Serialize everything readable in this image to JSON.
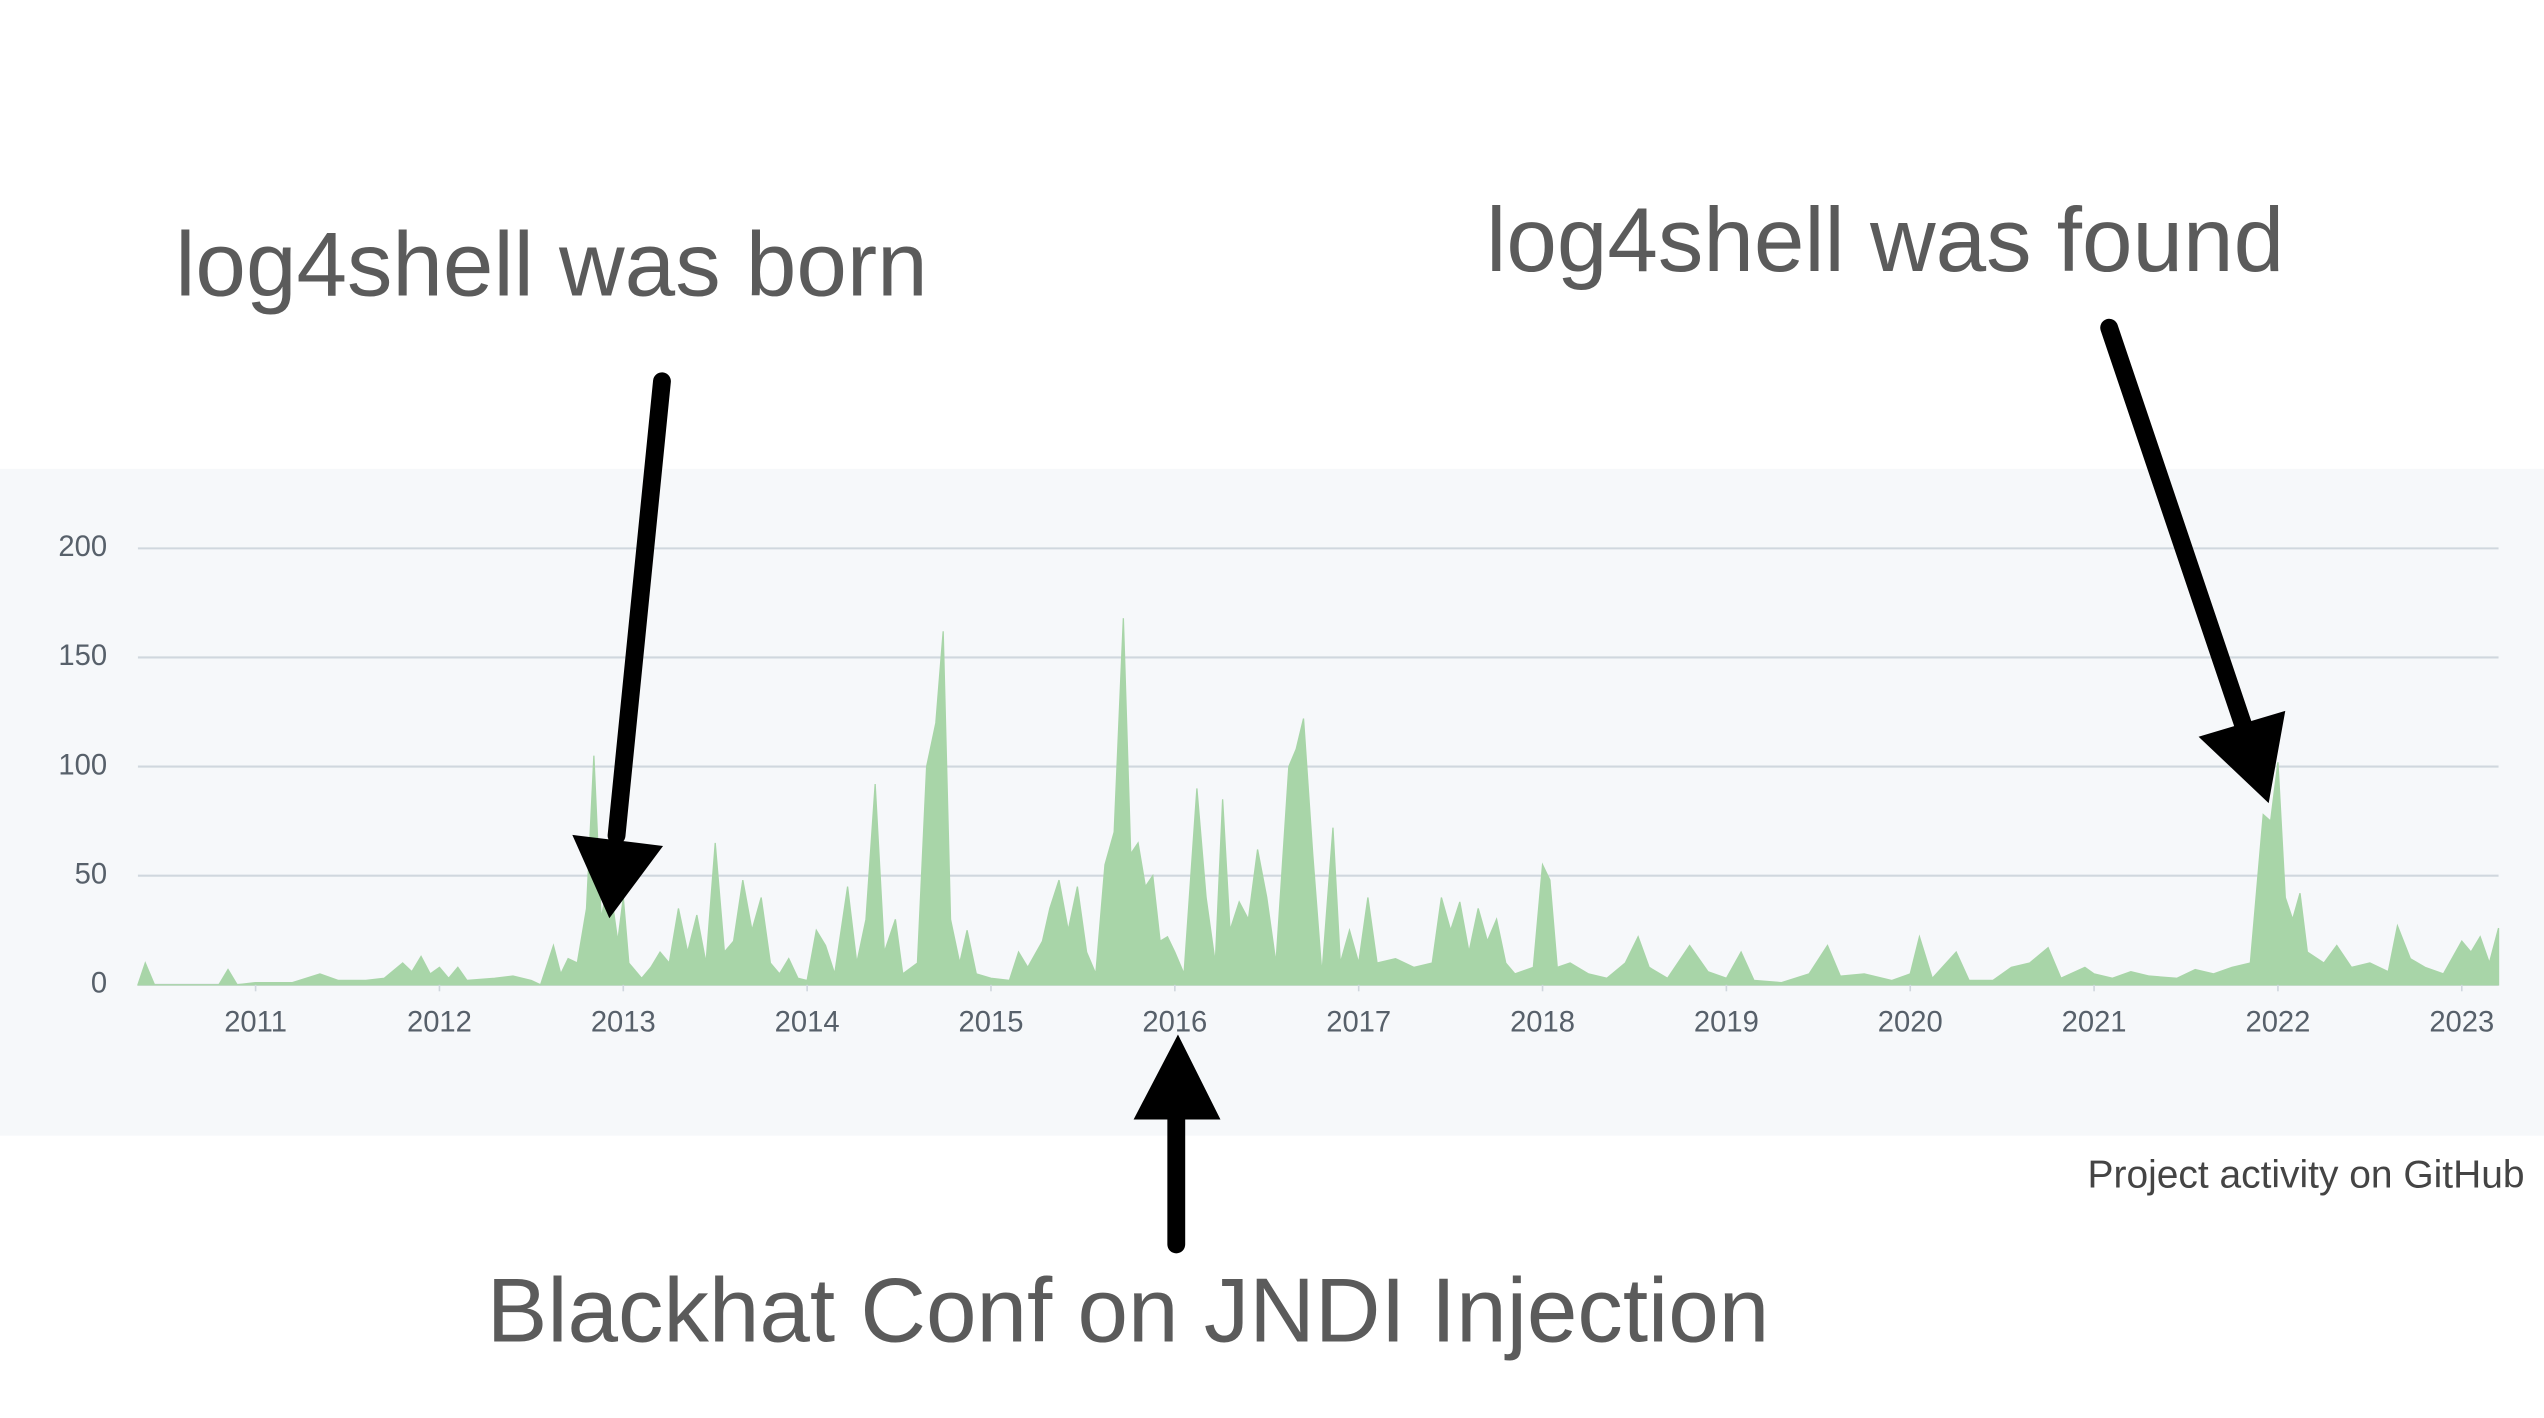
{
  "chart_data": {
    "type": "area",
    "color": "#a8d5a8",
    "grid": true,
    "xlim": [
      2010.36,
      2023.2
    ],
    "ylim": [
      0,
      200
    ],
    "xticks": [
      2011,
      2012,
      2013,
      2014,
      2015,
      2016,
      2017,
      2018,
      2019,
      2020,
      2021,
      2022,
      2023
    ],
    "yticks": [
      0,
      50,
      100,
      150,
      200
    ],
    "annotations": [
      "log4shell was born",
      "log4shell was found",
      "Blackhat Conf on JNDI Injection"
    ],
    "caption": "Project activity on GitHub",
    "x": [
      2010.36,
      2010.4,
      2010.45,
      2010.8,
      2010.85,
      2010.9,
      2011.0,
      2011.2,
      2011.35,
      2011.45,
      2011.6,
      2011.7,
      2011.8,
      2011.85,
      2011.9,
      2011.95,
      2012.0,
      2012.05,
      2012.1,
      2012.15,
      2012.3,
      2012.4,
      2012.5,
      2012.55,
      2012.62,
      2012.66,
      2012.7,
      2012.75,
      2012.8,
      2012.84,
      2012.88,
      2012.92,
      2012.97,
      2013.0,
      2013.03,
      2013.1,
      2013.15,
      2013.2,
      2013.25,
      2013.3,
      2013.35,
      2013.4,
      2013.45,
      2013.5,
      2013.55,
      2013.6,
      2013.65,
      2013.7,
      2013.75,
      2013.8,
      2013.85,
      2013.9,
      2013.95,
      2014.0,
      2014.05,
      2014.1,
      2014.15,
      2014.22,
      2014.27,
      2014.32,
      2014.37,
      2014.42,
      2014.48,
      2014.52,
      2014.6,
      2014.65,
      2014.7,
      2014.74,
      2014.78,
      2014.83,
      2014.87,
      2014.92,
      2015.0,
      2015.1,
      2015.15,
      2015.2,
      2015.28,
      2015.32,
      2015.37,
      2015.42,
      2015.47,
      2015.52,
      2015.57,
      2015.62,
      2015.67,
      2015.72,
      2015.76,
      2015.8,
      2015.84,
      2015.88,
      2015.92,
      2015.96,
      2016.0,
      2016.05,
      2016.12,
      2016.17,
      2016.22,
      2016.26,
      2016.3,
      2016.35,
      2016.4,
      2016.45,
      2016.5,
      2016.55,
      2016.62,
      2016.66,
      2016.7,
      2016.75,
      2016.8,
      2016.86,
      2016.9,
      2016.95,
      2017.0,
      2017.05,
      2017.1,
      2017.2,
      2017.3,
      2017.4,
      2017.45,
      2017.5,
      2017.55,
      2017.6,
      2017.65,
      2017.7,
      2017.75,
      2017.8,
      2017.85,
      2017.95,
      2018.0,
      2018.04,
      2018.08,
      2018.15,
      2018.25,
      2018.35,
      2018.45,
      2018.52,
      2018.58,
      2018.68,
      2018.8,
      2018.9,
      2019.0,
      2019.08,
      2019.15,
      2019.3,
      2019.45,
      2019.55,
      2019.62,
      2019.75,
      2019.9,
      2020.0,
      2020.05,
      2020.12,
      2020.25,
      2020.32,
      2020.45,
      2020.55,
      2020.65,
      2020.75,
      2020.82,
      2020.95,
      2021.0,
      2021.1,
      2021.2,
      2021.3,
      2021.45,
      2021.55,
      2021.65,
      2021.75,
      2021.85,
      2021.92,
      2021.96,
      2022.0,
      2022.04,
      2022.08,
      2022.12,
      2022.16,
      2022.25,
      2022.32,
      2022.4,
      2022.5,
      2022.6,
      2022.65,
      2022.72,
      2022.8,
      2022.9,
      2023.0,
      2023.05,
      2023.1,
      2023.15,
      2023.2
    ],
    "values": [
      0,
      10,
      0,
      0,
      7,
      0,
      1,
      1,
      5,
      2,
      2,
      3,
      10,
      6,
      13,
      5,
      8,
      3,
      8,
      2,
      3,
      4,
      2,
      0,
      18,
      5,
      12,
      10,
      35,
      105,
      30,
      50,
      20,
      40,
      10,
      3,
      8,
      15,
      10,
      35,
      15,
      32,
      10,
      65,
      15,
      20,
      48,
      25,
      40,
      10,
      5,
      12,
      3,
      2,
      25,
      18,
      5,
      45,
      10,
      30,
      92,
      15,
      30,
      5,
      10,
      100,
      120,
      162,
      30,
      10,
      25,
      5,
      3,
      2,
      15,
      8,
      20,
      35,
      48,
      25,
      45,
      15,
      5,
      55,
      70,
      168,
      60,
      65,
      45,
      50,
      20,
      22,
      15,
      5,
      90,
      40,
      10,
      85,
      25,
      38,
      30,
      62,
      40,
      10,
      100,
      108,
      122,
      60,
      5,
      72,
      10,
      25,
      10,
      40,
      10,
      12,
      8,
      10,
      40,
      25,
      38,
      15,
      35,
      20,
      30,
      10,
      5,
      8,
      55,
      48,
      8,
      10,
      5,
      3,
      10,
      22,
      8,
      3,
      18,
      6,
      3,
      15,
      2,
      1,
      5,
      18,
      4,
      5,
      2,
      5,
      22,
      3,
      15,
      2,
      2,
      8,
      10,
      17,
      3,
      8,
      5,
      3,
      6,
      4,
      3,
      7,
      5,
      8,
      10,
      78,
      75,
      102,
      40,
      30,
      42,
      15,
      10,
      18,
      8,
      10,
      6,
      27,
      12,
      8,
      5,
      20,
      15,
      22,
      10,
      26
    ]
  }
}
